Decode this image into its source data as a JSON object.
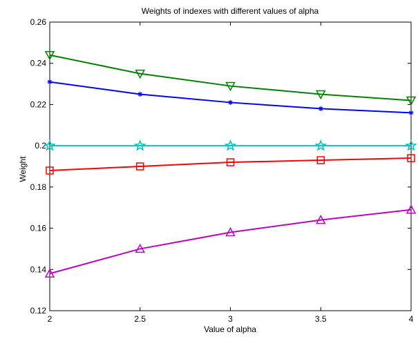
{
  "chart_data": {
    "type": "line",
    "title": "Weights of indexes with different values of alpha",
    "xlabel": "Value of alpha",
    "ylabel": "Weight",
    "xlim": [
      2,
      4
    ],
    "ylim": [
      0.12,
      0.26
    ],
    "grid": false,
    "legend": "none",
    "x": [
      2,
      2.5,
      3,
      3.5,
      4
    ],
    "x_tick_labels": [
      "2",
      "2.5",
      "3",
      "3.5",
      "4"
    ],
    "y_ticks": [
      0.12,
      0.14,
      0.16,
      0.18,
      0.2,
      0.22,
      0.24,
      0.26
    ],
    "y_tick_labels": [
      "0.12",
      "0.14",
      "0.16",
      "0.18",
      "0.2",
      "0.22",
      "0.24",
      "0.26"
    ],
    "series": [
      {
        "values": [
          0.244,
          0.235,
          0.229,
          0.225,
          0.222
        ],
        "color": "#008000",
        "marker": "triangle-down"
      },
      {
        "values": [
          0.231,
          0.225,
          0.221,
          0.218,
          0.216
        ],
        "color": "#0000ff",
        "marker": "asterisk"
      },
      {
        "values": [
          0.2,
          0.2,
          0.2,
          0.2,
          0.2
        ],
        "color": "#00bfbf",
        "marker": "star"
      },
      {
        "values": [
          0.188,
          0.19,
          0.192,
          0.193,
          0.194
        ],
        "color": "#ff0000",
        "marker": "square"
      },
      {
        "values": [
          0.138,
          0.15,
          0.158,
          0.164,
          0.169
        ],
        "color": "#bf00bf",
        "marker": "triangle-up"
      }
    ]
  }
}
